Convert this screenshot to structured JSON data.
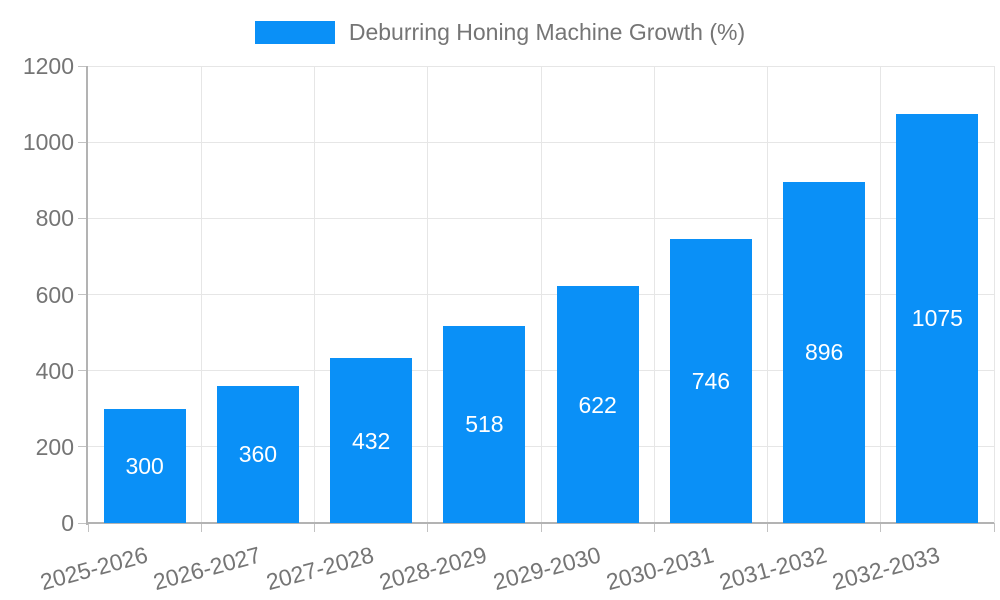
{
  "chart_data": {
    "type": "bar",
    "title": "Deburring Honing Machine Growth (%)",
    "categories": [
      "2025-2026",
      "2026-2027",
      "2027-2028",
      "2028-2029",
      "2029-2030",
      "2030-2031",
      "2031-2032",
      "2032-2033"
    ],
    "values": [
      300,
      360,
      432,
      518,
      622,
      746,
      896,
      1075
    ],
    "value_labels": [
      "300",
      "360",
      "432",
      "518",
      "622",
      "746",
      "896",
      "1075"
    ],
    "xlabel": "",
    "ylabel": "",
    "ylim": [
      0,
      1200
    ],
    "yticks": [
      0,
      200,
      400,
      600,
      800,
      1000,
      1200
    ],
    "grid": true,
    "legend_position": "top-center",
    "value_label_position": "inside-center"
  },
  "colors": {
    "bar": "#0a90f7",
    "axis_text": "#757575",
    "legend_text": "#757575",
    "value_label_text": "#ffffff",
    "gridline": "#e6e6e6",
    "axis_line": "#b3b3b3",
    "tick": "#c2c2c2",
    "background": "#ffffff"
  }
}
